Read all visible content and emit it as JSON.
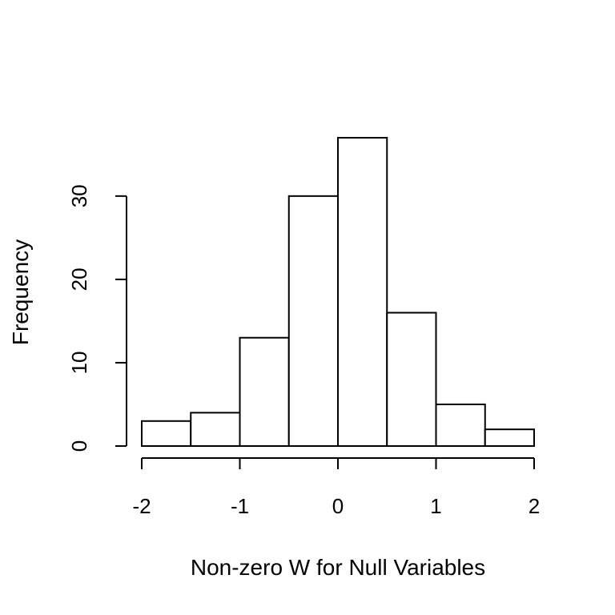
{
  "chart_data": {
    "type": "bar",
    "title": "",
    "xlabel": "Non-zero W for Null Variables",
    "ylabel": "Frequency",
    "bin_edges": [
      -2,
      -1.5,
      -1,
      -0.5,
      0,
      0.5,
      1,
      1.5,
      2
    ],
    "values": [
      3,
      4,
      13,
      30,
      37,
      16,
      5,
      2
    ],
    "xticks": [
      -2,
      -1,
      0,
      1,
      2
    ],
    "xtick_labels": [
      "-2",
      "-1",
      "0",
      "1",
      "2"
    ],
    "yticks": [
      0,
      10,
      20,
      30
    ],
    "ytick_labels": [
      "0",
      "10",
      "20",
      "30"
    ],
    "xlim": [
      -2,
      2
    ],
    "ylim": [
      0,
      37
    ],
    "grid": false,
    "colors": {
      "bar_fill": "#ffffff",
      "bar_stroke": "#000000"
    }
  }
}
